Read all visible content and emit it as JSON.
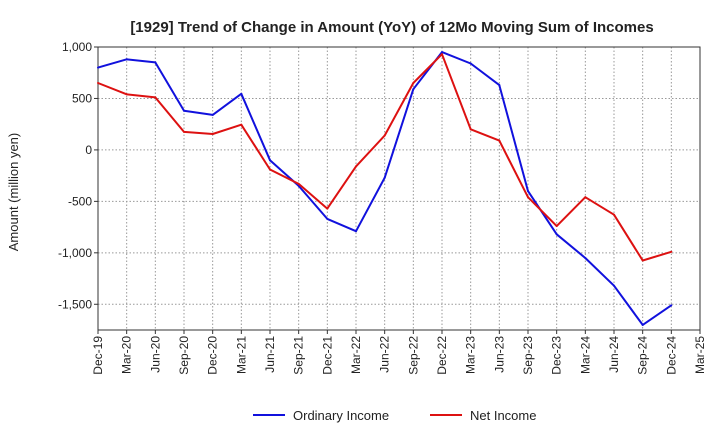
{
  "chart_data": {
    "type": "line",
    "title": "[1929]  Trend of Change in Amount (YoY) of 12Mo Moving Sum of Incomes",
    "xlabel": "",
    "ylabel": "Amount (million yen)",
    "ylim": [
      -1750,
      1000
    ],
    "yticks": [
      1000,
      500,
      0,
      -500,
      -1000,
      -1500
    ],
    "ytick_labels": [
      "1,000",
      "500",
      "0",
      "-500",
      "-1,000",
      "-1,500"
    ],
    "categories": [
      "Dec-19",
      "Mar-20",
      "Jun-20",
      "Sep-20",
      "Dec-20",
      "Mar-21",
      "Jun-21",
      "Sep-21",
      "Dec-21",
      "Mar-22",
      "Jun-22",
      "Sep-22",
      "Dec-22",
      "Mar-23",
      "Jun-23",
      "Sep-23",
      "Dec-23",
      "Mar-24",
      "Jun-24",
      "Sep-24",
      "Dec-24",
      "Mar-25"
    ],
    "grid": true,
    "legend_position": "bottom-center",
    "series": [
      {
        "name": "Ordinary Income",
        "color": "#1111dd",
        "values": [
          800,
          880,
          850,
          380,
          340,
          545,
          -100,
          -350,
          -670,
          -790,
          -270,
          590,
          950,
          840,
          630,
          -400,
          -820,
          -1050,
          -1320,
          -1700,
          -1510,
          null
        ]
      },
      {
        "name": "Net Income",
        "color": "#dd1111",
        "values": [
          650,
          540,
          510,
          175,
          155,
          245,
          -190,
          -330,
          -570,
          -160,
          140,
          650,
          930,
          200,
          90,
          -460,
          -740,
          -460,
          -630,
          -1075,
          -990,
          null
        ]
      }
    ]
  }
}
